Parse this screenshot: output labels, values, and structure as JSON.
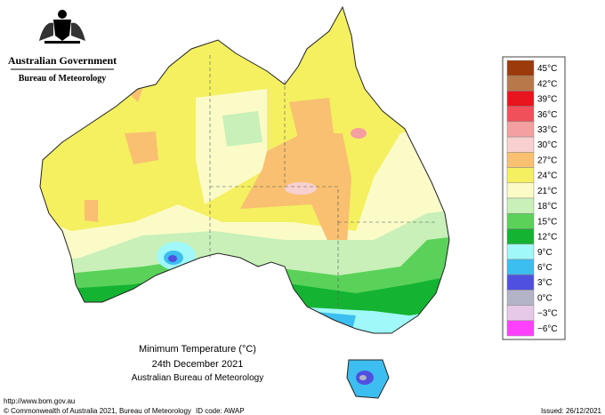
{
  "header": {
    "government": "Australian Government",
    "bureau": "Bureau of Meteorology"
  },
  "caption": {
    "title": "Minimum Temperature (°C)",
    "date": "24th December 2021",
    "source": "Australian Bureau of Meteorology"
  },
  "legend": {
    "items": [
      {
        "label": "45°C",
        "color": "#9c3a0a"
      },
      {
        "label": "42°C",
        "color": "#b8784a"
      },
      {
        "label": "39°C",
        "color": "#e8141e"
      },
      {
        "label": "36°C",
        "color": "#f0505a"
      },
      {
        "label": "33°C",
        "color": "#f4a0a0"
      },
      {
        "label": "30°C",
        "color": "#f8d0d0"
      },
      {
        "label": "27°C",
        "color": "#f8c070"
      },
      {
        "label": "24°C",
        "color": "#f4f060"
      },
      {
        "label": "21°C",
        "color": "#fbfbc8"
      },
      {
        "label": "18°C",
        "color": "#c8f0b8"
      },
      {
        "label": "15°C",
        "color": "#5ad25a"
      },
      {
        "label": "12°C",
        "color": "#14b432"
      },
      {
        "label": "9°C",
        "color": "#a0f8f8"
      },
      {
        "label": "6°C",
        "color": "#3cbef0"
      },
      {
        "label": "3°C",
        "color": "#5050e0"
      },
      {
        "label": "0°C",
        "color": "#b4b4c8"
      },
      {
        "label": "−3°C",
        "color": "#e8c8e8"
      },
      {
        "label": "−6°C",
        "color": "#ff40ff"
      }
    ]
  },
  "footer": {
    "url": "http://www.bom.gov.au",
    "copyright": "© Commonwealth of Australia 2021, Bureau of Meteorology",
    "id": "ID code: AWAP",
    "issued": "Issued: 26/12/2021"
  }
}
